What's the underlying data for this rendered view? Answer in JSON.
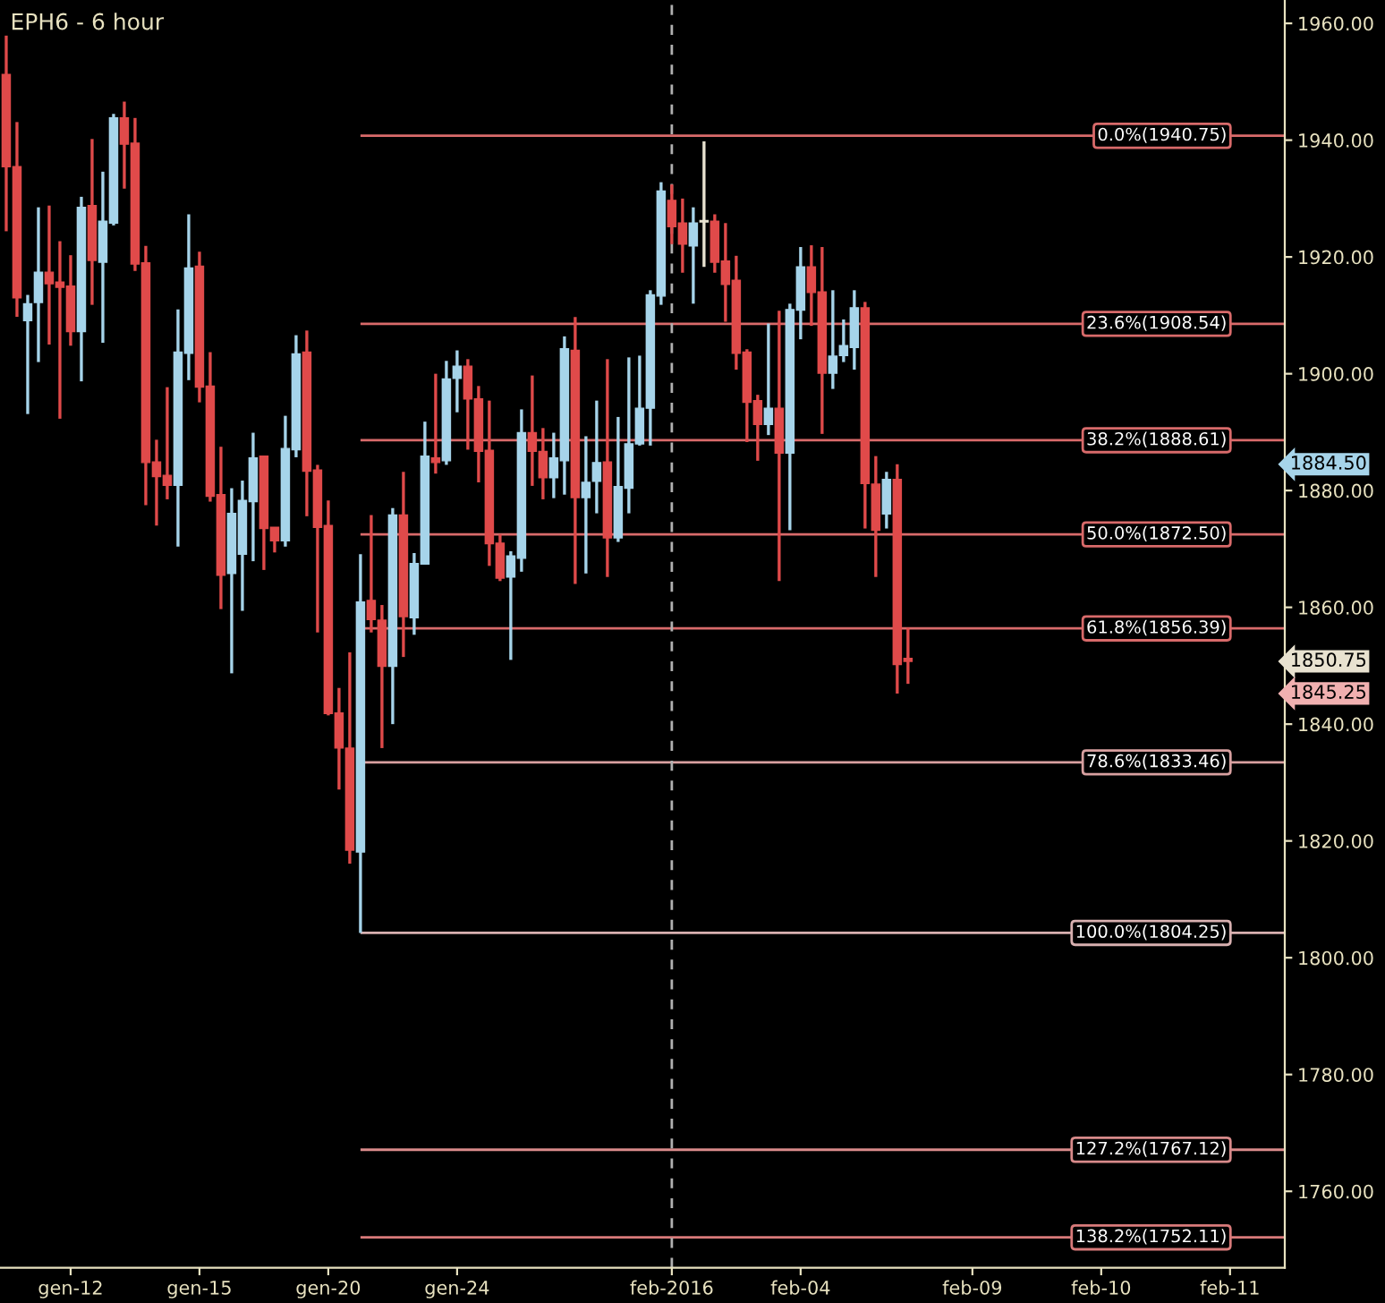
{
  "chart_data": {
    "type": "candlestick",
    "title": "EPH6 - 6 hour",
    "categories": [
      null,
      null,
      null,
      null,
      null,
      null,
      "gen-12",
      null,
      null,
      null,
      null,
      null,
      null,
      null,
      null,
      null,
      null,
      null,
      "gen-15",
      null,
      null,
      null,
      null,
      null,
      null,
      null,
      null,
      null,
      null,
      null,
      "gen-20",
      null,
      null,
      null,
      null,
      null,
      null,
      null,
      null,
      null,
      null,
      null,
      "gen-24",
      null,
      null,
      null,
      null,
      null,
      null,
      null,
      null,
      null,
      null,
      null,
      null,
      null,
      null,
      null,
      null,
      null,
      null,
      null,
      "feb-2016",
      null,
      null,
      null,
      null,
      null,
      null,
      null,
      null,
      null,
      null,
      null,
      "feb-04",
      null,
      null,
      null,
      null,
      null,
      null,
      null,
      null,
      null,
      null,
      null,
      null,
      null,
      null,
      null,
      "feb-09",
      null,
      null,
      null,
      null,
      null,
      null,
      null,
      null,
      null,
      null,
      null,
      "feb-10",
      null,
      null,
      null,
      null,
      null,
      null,
      null,
      null,
      null,
      null,
      null,
      "feb-11",
      null,
      null,
      null,
      null,
      null
    ],
    "ohlc": [
      [
        1951.25,
        1957.9,
        1924.4,
        1935.45
      ],
      [
        1935.45,
        1943.1,
        1909.75,
        1913.0
      ],
      [
        1909.1,
        1913.5,
        1893.1,
        1912.0
      ],
      [
        1912.2,
        1928.5,
        1902.0,
        1917.4
      ],
      [
        1917.4,
        1928.8,
        1905.0,
        1915.4
      ],
      [
        1915.7,
        1922.7,
        1892.3,
        1914.8
      ],
      [
        1915.0,
        1920.3,
        1904.8,
        1907.2
      ],
      [
        1907.2,
        1930.3,
        1898.7,
        1928.5
      ],
      [
        1928.8,
        1940.2,
        1911.8,
        1919.4
      ],
      [
        1919.1,
        1934.6,
        1905.3,
        1926.1
      ],
      [
        1925.8,
        1944.5,
        1925.4,
        1943.8
      ],
      [
        1943.8,
        1946.6,
        1931.7,
        1939.3
      ],
      [
        1939.5,
        1943.8,
        1917.6,
        1918.8
      ],
      [
        1919.0,
        1921.9,
        1877.5,
        1884.8
      ],
      [
        1884.9,
        1888.7,
        1874.0,
        1882.4
      ],
      [
        1882.6,
        1897.7,
        1878.5,
        1880.9
      ],
      [
        1880.9,
        1911.0,
        1870.4,
        1903.7
      ],
      [
        1903.5,
        1927.3,
        1898.9,
        1918.1
      ],
      [
        1918.4,
        1920.9,
        1895.1,
        1897.7
      ],
      [
        1897.9,
        1903.7,
        1878.1,
        1879.0
      ],
      [
        1879.3,
        1887.5,
        1859.7,
        1865.5
      ],
      [
        1865.8,
        1880.4,
        1848.7,
        1876.1
      ],
      [
        1869.1,
        1881.7,
        1859.4,
        1878.3
      ],
      [
        1878.1,
        1889.9,
        1867.9,
        1885.6
      ],
      [
        1885.9,
        1885.9,
        1866.4,
        1873.5
      ],
      [
        1873.7,
        1873.7,
        1869.4,
        1871.4
      ],
      [
        1871.4,
        1892.8,
        1870.4,
        1887.2
      ],
      [
        1887.0,
        1906.6,
        1885.7,
        1903.4
      ],
      [
        1903.7,
        1907.4,
        1875.6,
        1883.3
      ],
      [
        1883.5,
        1884.4,
        1855.7,
        1873.7
      ],
      [
        1874.0,
        1878.3,
        1841.5,
        1841.8
      ],
      [
        1841.9,
        1846.2,
        1828.8,
        1835.9
      ],
      [
        1835.9,
        1852.3,
        1816.1,
        1818.4
      ],
      [
        1818.1,
        1869.1,
        1804.25,
        1860.9
      ],
      [
        1861.2,
        1875.8,
        1855.7,
        1857.9
      ],
      [
        1857.8,
        1860.4,
        1835.9,
        1849.9
      ],
      [
        1849.9,
        1877.0,
        1840.0,
        1875.8
      ],
      [
        1875.8,
        1883.2,
        1851.5,
        1858.4
      ],
      [
        1858.2,
        1869.3,
        1855.3,
        1867.5
      ],
      [
        1867.4,
        1891.8,
        1867.4,
        1885.9
      ],
      [
        1885.6,
        1900.0,
        1882.9,
        1884.8
      ],
      [
        1885.1,
        1902.2,
        1884.4,
        1899.1
      ],
      [
        1899.2,
        1904.0,
        1893.4,
        1901.3
      ],
      [
        1901.3,
        1902.5,
        1887.0,
        1895.7
      ],
      [
        1895.7,
        1897.9,
        1881.4,
        1886.7
      ],
      [
        1886.9,
        1895.4,
        1867.1,
        1870.9
      ],
      [
        1871.0,
        1872.5,
        1864.5,
        1865.0
      ],
      [
        1865.2,
        1869.6,
        1851.0,
        1868.8
      ],
      [
        1868.4,
        1893.9,
        1866.1,
        1889.9
      ],
      [
        1889.9,
        1899.7,
        1880.8,
        1886.7
      ],
      [
        1886.7,
        1890.7,
        1878.5,
        1882.2
      ],
      [
        1882.2,
        1889.9,
        1878.7,
        1885.6
      ],
      [
        1885.1,
        1906.4,
        1879.3,
        1904.3
      ],
      [
        1904.0,
        1909.7,
        1864.0,
        1878.8
      ],
      [
        1878.8,
        1889.3,
        1865.8,
        1881.4
      ],
      [
        1881.6,
        1895.4,
        1876.1,
        1884.8
      ],
      [
        1884.9,
        1902.5,
        1865.2,
        1871.9
      ],
      [
        1871.9,
        1892.6,
        1871.2,
        1880.7
      ],
      [
        1880.4,
        1902.8,
        1876.1,
        1888.0
      ],
      [
        1888.0,
        1903.1,
        1887.7,
        1894.1
      ],
      [
        1894.1,
        1914.3,
        1887.7,
        1913.5
      ],
      [
        1913.3,
        1932.8,
        1911.8,
        1931.3
      ],
      [
        1929.7,
        1932.4,
        1922.2,
        1925.2
      ],
      [
        1925.8,
        1930.0,
        1917.3,
        1922.2
      ],
      [
        1921.9,
        1928.5,
        1912.0,
        1925.8
      ],
      [
        1926.0,
        1939.8,
        1918.3,
        1926.0
      ],
      [
        1926.1,
        1927.3,
        1917.3,
        1919.1
      ],
      [
        1919.3,
        1925.8,
        1908.9,
        1915.3
      ],
      [
        1916.0,
        1920.2,
        1900.7,
        1903.5
      ],
      [
        1903.7,
        1904.2,
        1888.3,
        1895.1
      ],
      [
        1895.4,
        1896.4,
        1885.1,
        1891.3
      ],
      [
        1891.3,
        1908.6,
        1889.5,
        1894.1
      ],
      [
        1894.1,
        1910.8,
        1864.5,
        1886.4
      ],
      [
        1886.4,
        1912.0,
        1873.2,
        1911.0
      ],
      [
        1910.9,
        1921.7,
        1905.9,
        1918.3
      ],
      [
        1918.3,
        1922.0,
        1908.2,
        1913.9
      ],
      [
        1914.0,
        1921.7,
        1889.7,
        1900.1
      ],
      [
        1900.1,
        1914.3,
        1897.4,
        1903.0
      ],
      [
        1903.1,
        1909.3,
        1902.0,
        1904.8
      ],
      [
        1904.5,
        1914.3,
        1900.7,
        1911.3
      ],
      [
        1911.3,
        1912.3,
        1873.5,
        1881.2
      ],
      [
        1881.1,
        1885.9,
        1865.2,
        1873.2
      ],
      [
        1876.0,
        1883.2,
        1873.5,
        1881.9
      ],
      [
        1881.9,
        1884.5,
        1845.25,
        1850.2
      ],
      [
        1851.25,
        1856.5,
        1846.9,
        1850.75
      ],
      null,
      null,
      null,
      null,
      null,
      null,
      null,
      null,
      null,
      null,
      null,
      null,
      null,
      null,
      null,
      null,
      null,
      null,
      null,
      null,
      null,
      null,
      null,
      null,
      null,
      null,
      null,
      null,
      null,
      null,
      null,
      null,
      null,
      null,
      null
    ],
    "colors": [
      "#e04a4a",
      "#e04a4a",
      "#a6d4ea",
      "#a6d4ea",
      "#e04a4a",
      "#e04a4a",
      "#e04a4a",
      "#a6d4ea",
      "#e04a4a",
      "#a6d4ea",
      "#a6d4ea",
      "#e04a4a",
      "#e04a4a",
      "#e04a4a",
      "#e04a4a",
      "#e04a4a",
      "#a6d4ea",
      "#a6d4ea",
      "#e04a4a",
      "#e04a4a",
      "#e04a4a",
      "#a6d4ea",
      "#a6d4ea",
      "#a6d4ea",
      "#e04a4a",
      "#e04a4a",
      "#a6d4ea",
      "#a6d4ea",
      "#e04a4a",
      "#e04a4a",
      "#e04a4a",
      "#e04a4a",
      "#e04a4a",
      "#a6d4ea",
      "#e04a4a",
      "#e04a4a",
      "#a6d4ea",
      "#e04a4a",
      "#a6d4ea",
      "#a6d4ea",
      "#e04a4a",
      "#a6d4ea",
      "#a6d4ea",
      "#e04a4a",
      "#e04a4a",
      "#e04a4a",
      "#e04a4a",
      "#a6d4ea",
      "#a6d4ea",
      "#e04a4a",
      "#e04a4a",
      "#a6d4ea",
      "#a6d4ea",
      "#e04a4a",
      "#a6d4ea",
      "#a6d4ea",
      "#e04a4a",
      "#a6d4ea",
      "#a6d4ea",
      "#a6d4ea",
      "#a6d4ea",
      "#a6d4ea",
      "#e04a4a",
      "#e04a4a",
      "#a6d4ea",
      "#e8e2d0",
      "#e04a4a",
      "#e04a4a",
      "#e04a4a",
      "#e04a4a",
      "#e04a4a",
      "#a6d4ea",
      "#e04a4a",
      "#a6d4ea",
      "#a6d4ea",
      "#e04a4a",
      "#e04a4a",
      "#a6d4ea",
      "#a6d4ea",
      "#a6d4ea",
      "#e04a4a",
      "#e04a4a",
      "#a6d4ea",
      "#e04a4a",
      "#e04a4a",
      null,
      null,
      null,
      null,
      null,
      null,
      null,
      null,
      null,
      null,
      null,
      null,
      null,
      null,
      null,
      null,
      null,
      null,
      null,
      null,
      null,
      null,
      null,
      null,
      null,
      null,
      null,
      null,
      null,
      null,
      null,
      null,
      null,
      null,
      null
    ],
    "ylim": [
      1746.9,
      1964.0
    ],
    "yticks": [
      {
        "value": 1760,
        "label": "1760.00"
      },
      {
        "value": 1780,
        "label": "1780.00"
      },
      {
        "value": 1800,
        "label": "1800.00"
      },
      {
        "value": 1820,
        "label": "1820.00"
      },
      {
        "value": 1840,
        "label": "1840.00"
      },
      {
        "value": 1860,
        "label": "1860.00"
      },
      {
        "value": 1880,
        "label": "1880.00"
      },
      {
        "value": 1900,
        "label": "1900.00"
      },
      {
        "value": 1920,
        "label": "1920.00"
      },
      {
        "value": 1940,
        "label": "1940.00"
      },
      {
        "value": 1960,
        "label": "1960.00"
      }
    ],
    "ref_lines": [
      {
        "axis": "y",
        "value": 1940.75,
        "label": "0.0%(1940.75)",
        "color": "#d86a6a"
      },
      {
        "axis": "y",
        "value": 1908.54,
        "label": "23.6%(1908.54)",
        "color": "#d86a6a"
      },
      {
        "axis": "y",
        "value": 1888.61,
        "label": "38.2%(1888.61)",
        "color": "#d86a6a"
      },
      {
        "axis": "y",
        "value": 1872.5,
        "label": "50.0%(1872.50)",
        "color": "#d86a6a"
      },
      {
        "axis": "y",
        "value": 1856.39,
        "label": "61.8%(1856.39)",
        "color": "#d86a6a"
      },
      {
        "axis": "y",
        "value": 1833.46,
        "label": "78.6%(1833.46)",
        "color": "#d8a0a0"
      },
      {
        "axis": "y",
        "value": 1804.25,
        "label": "100.0%(1804.25)",
        "color": "#d8b0b0"
      },
      {
        "axis": "y",
        "value": 1767.12,
        "label": "127.2%(1767.12)",
        "color": "#d88a8a"
      },
      {
        "axis": "y",
        "value": 1752.11,
        "label": "138.2%(1752.11)",
        "color": "#d87a7a"
      },
      {
        "axis": "x",
        "value": "feb-2016",
        "color": "#b0b0b0",
        "line_style": "dashed"
      }
    ],
    "annotations": [
      "1884.50",
      "1850.75",
      "1845.25"
    ],
    "grid": false,
    "legend": false
  }
}
